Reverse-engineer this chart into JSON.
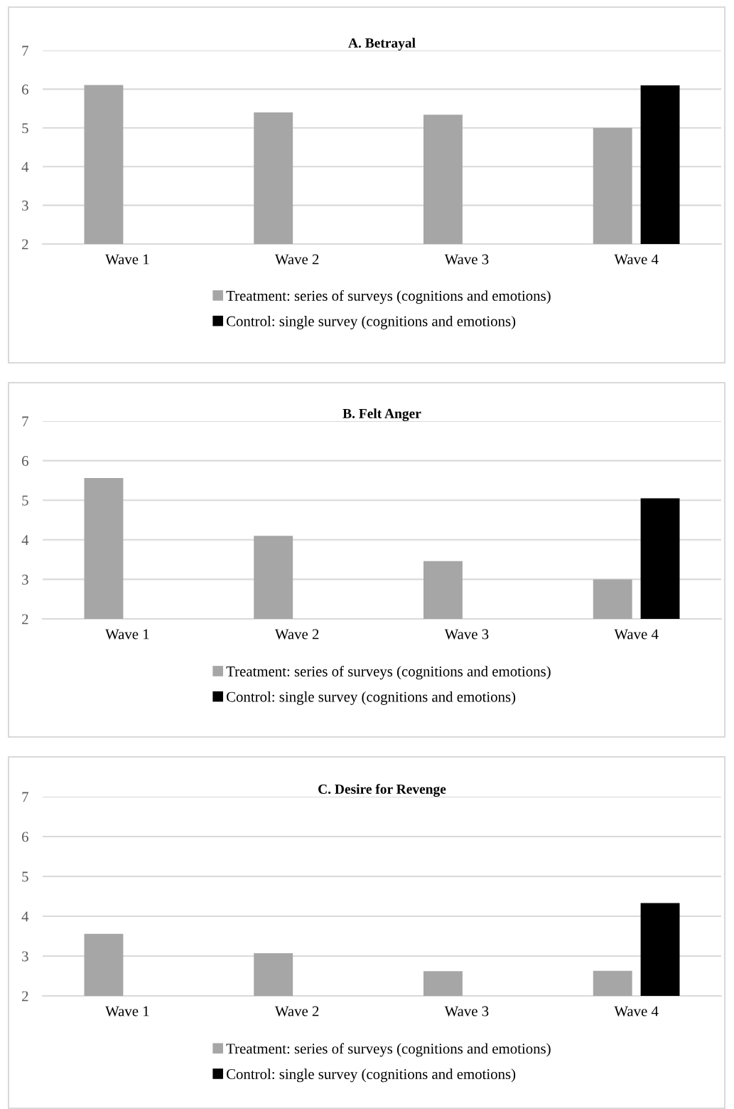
{
  "chart_data": [
    {
      "type": "bar",
      "title": "A. Betrayal",
      "categories": [
        "Wave 1",
        "Wave 2",
        "Wave 3",
        "Wave 4"
      ],
      "series": [
        {
          "name": "Treatment: series of surveys (cognitions and emotions)",
          "color": "#a6a6a6",
          "values": [
            6.11,
            5.4,
            5.34,
            5.0
          ]
        },
        {
          "name": "Control: single survey (cognitions and emotions)",
          "color": "#000000",
          "values": [
            null,
            null,
            null,
            6.1
          ]
        }
      ],
      "ylim": [
        2,
        7
      ],
      "yticks": [
        2,
        3,
        4,
        5,
        6,
        7
      ],
      "grid": "y",
      "legend": "bottom"
    },
    {
      "type": "bar",
      "title": "B. Felt Anger",
      "categories": [
        "Wave 1",
        "Wave 2",
        "Wave 3",
        "Wave 4"
      ],
      "series": [
        {
          "name": "Treatment: series of surveys (cognitions and emotions)",
          "color": "#a6a6a6",
          "values": [
            5.56,
            4.1,
            3.46,
            3.0
          ]
        },
        {
          "name": "Control: single survey (cognitions and emotions)",
          "color": "#000000",
          "values": [
            null,
            null,
            null,
            5.05
          ]
        }
      ],
      "ylim": [
        2,
        7
      ],
      "yticks": [
        2,
        3,
        4,
        5,
        6,
        7
      ],
      "grid": "y",
      "legend": "bottom"
    },
    {
      "type": "bar",
      "title": "C. Desire for Revenge",
      "categories": [
        "Wave 1",
        "Wave 2",
        "Wave 3",
        "Wave 4"
      ],
      "series": [
        {
          "name": "Treatment: series of surveys (cognitions and emotions)",
          "color": "#a6a6a6",
          "values": [
            3.56,
            3.07,
            2.62,
            2.63
          ]
        },
        {
          "name": "Control: single survey (cognitions and emotions)",
          "color": "#000000",
          "values": [
            null,
            null,
            null,
            4.33
          ]
        }
      ],
      "ylim": [
        2,
        7
      ],
      "yticks": [
        2,
        3,
        4,
        5,
        6,
        7
      ],
      "grid": "y",
      "legend": "bottom"
    }
  ]
}
